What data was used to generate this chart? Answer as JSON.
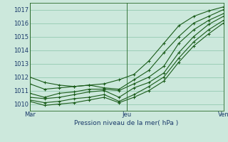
{
  "title": "Pression niveau de la mer( hPa )",
  "background_color": "#cce8dc",
  "grid_color": "#88c4a8",
  "line_color": "#1a5c1a",
  "xlim": [
    0,
    48
  ],
  "ylim": [
    1009.5,
    1017.5
  ],
  "yticks": [
    1010,
    1011,
    1012,
    1013,
    1014,
    1015,
    1016,
    1017
  ],
  "xtick_positions": [
    0,
    24,
    48
  ],
  "xtick_labels": [
    "Mar",
    "Jeu",
    "Ven"
  ],
  "series": [
    [
      1012.0,
      1011.6,
      1011.4,
      1011.3,
      1011.4,
      1011.5,
      1011.8,
      1012.2,
      1013.2,
      1014.5,
      1015.8,
      1016.5,
      1016.9,
      1017.2
    ],
    [
      1011.5,
      1011.1,
      1011.2,
      1011.3,
      1011.4,
      1011.2,
      1011.1,
      1011.8,
      1012.5,
      1013.8,
      1015.0,
      1016.0,
      1016.5,
      1017.0
    ],
    [
      1010.8,
      1010.5,
      1010.8,
      1010.9,
      1011.1,
      1011.1,
      1011.0,
      1011.5,
      1012.0,
      1012.8,
      1014.5,
      1015.5,
      1016.2,
      1016.7
    ],
    [
      1010.5,
      1010.4,
      1010.5,
      1010.7,
      1010.9,
      1011.0,
      1010.5,
      1011.2,
      1011.6,
      1012.3,
      1013.8,
      1015.0,
      1015.9,
      1016.5
    ],
    [
      1010.3,
      1010.1,
      1010.2,
      1010.4,
      1010.5,
      1010.7,
      1010.2,
      1010.7,
      1011.3,
      1012.0,
      1013.4,
      1014.6,
      1015.5,
      1016.2
    ],
    [
      1010.2,
      1009.9,
      1010.0,
      1010.1,
      1010.3,
      1010.5,
      1010.1,
      1010.5,
      1011.0,
      1011.7,
      1013.1,
      1014.3,
      1015.2,
      1016.0
    ]
  ],
  "n_points": 14,
  "ylabel_fontsize": 6.5,
  "tick_fontsize": 6,
  "label_color": "#1a3a6a",
  "spine_color": "#2a6a2a"
}
